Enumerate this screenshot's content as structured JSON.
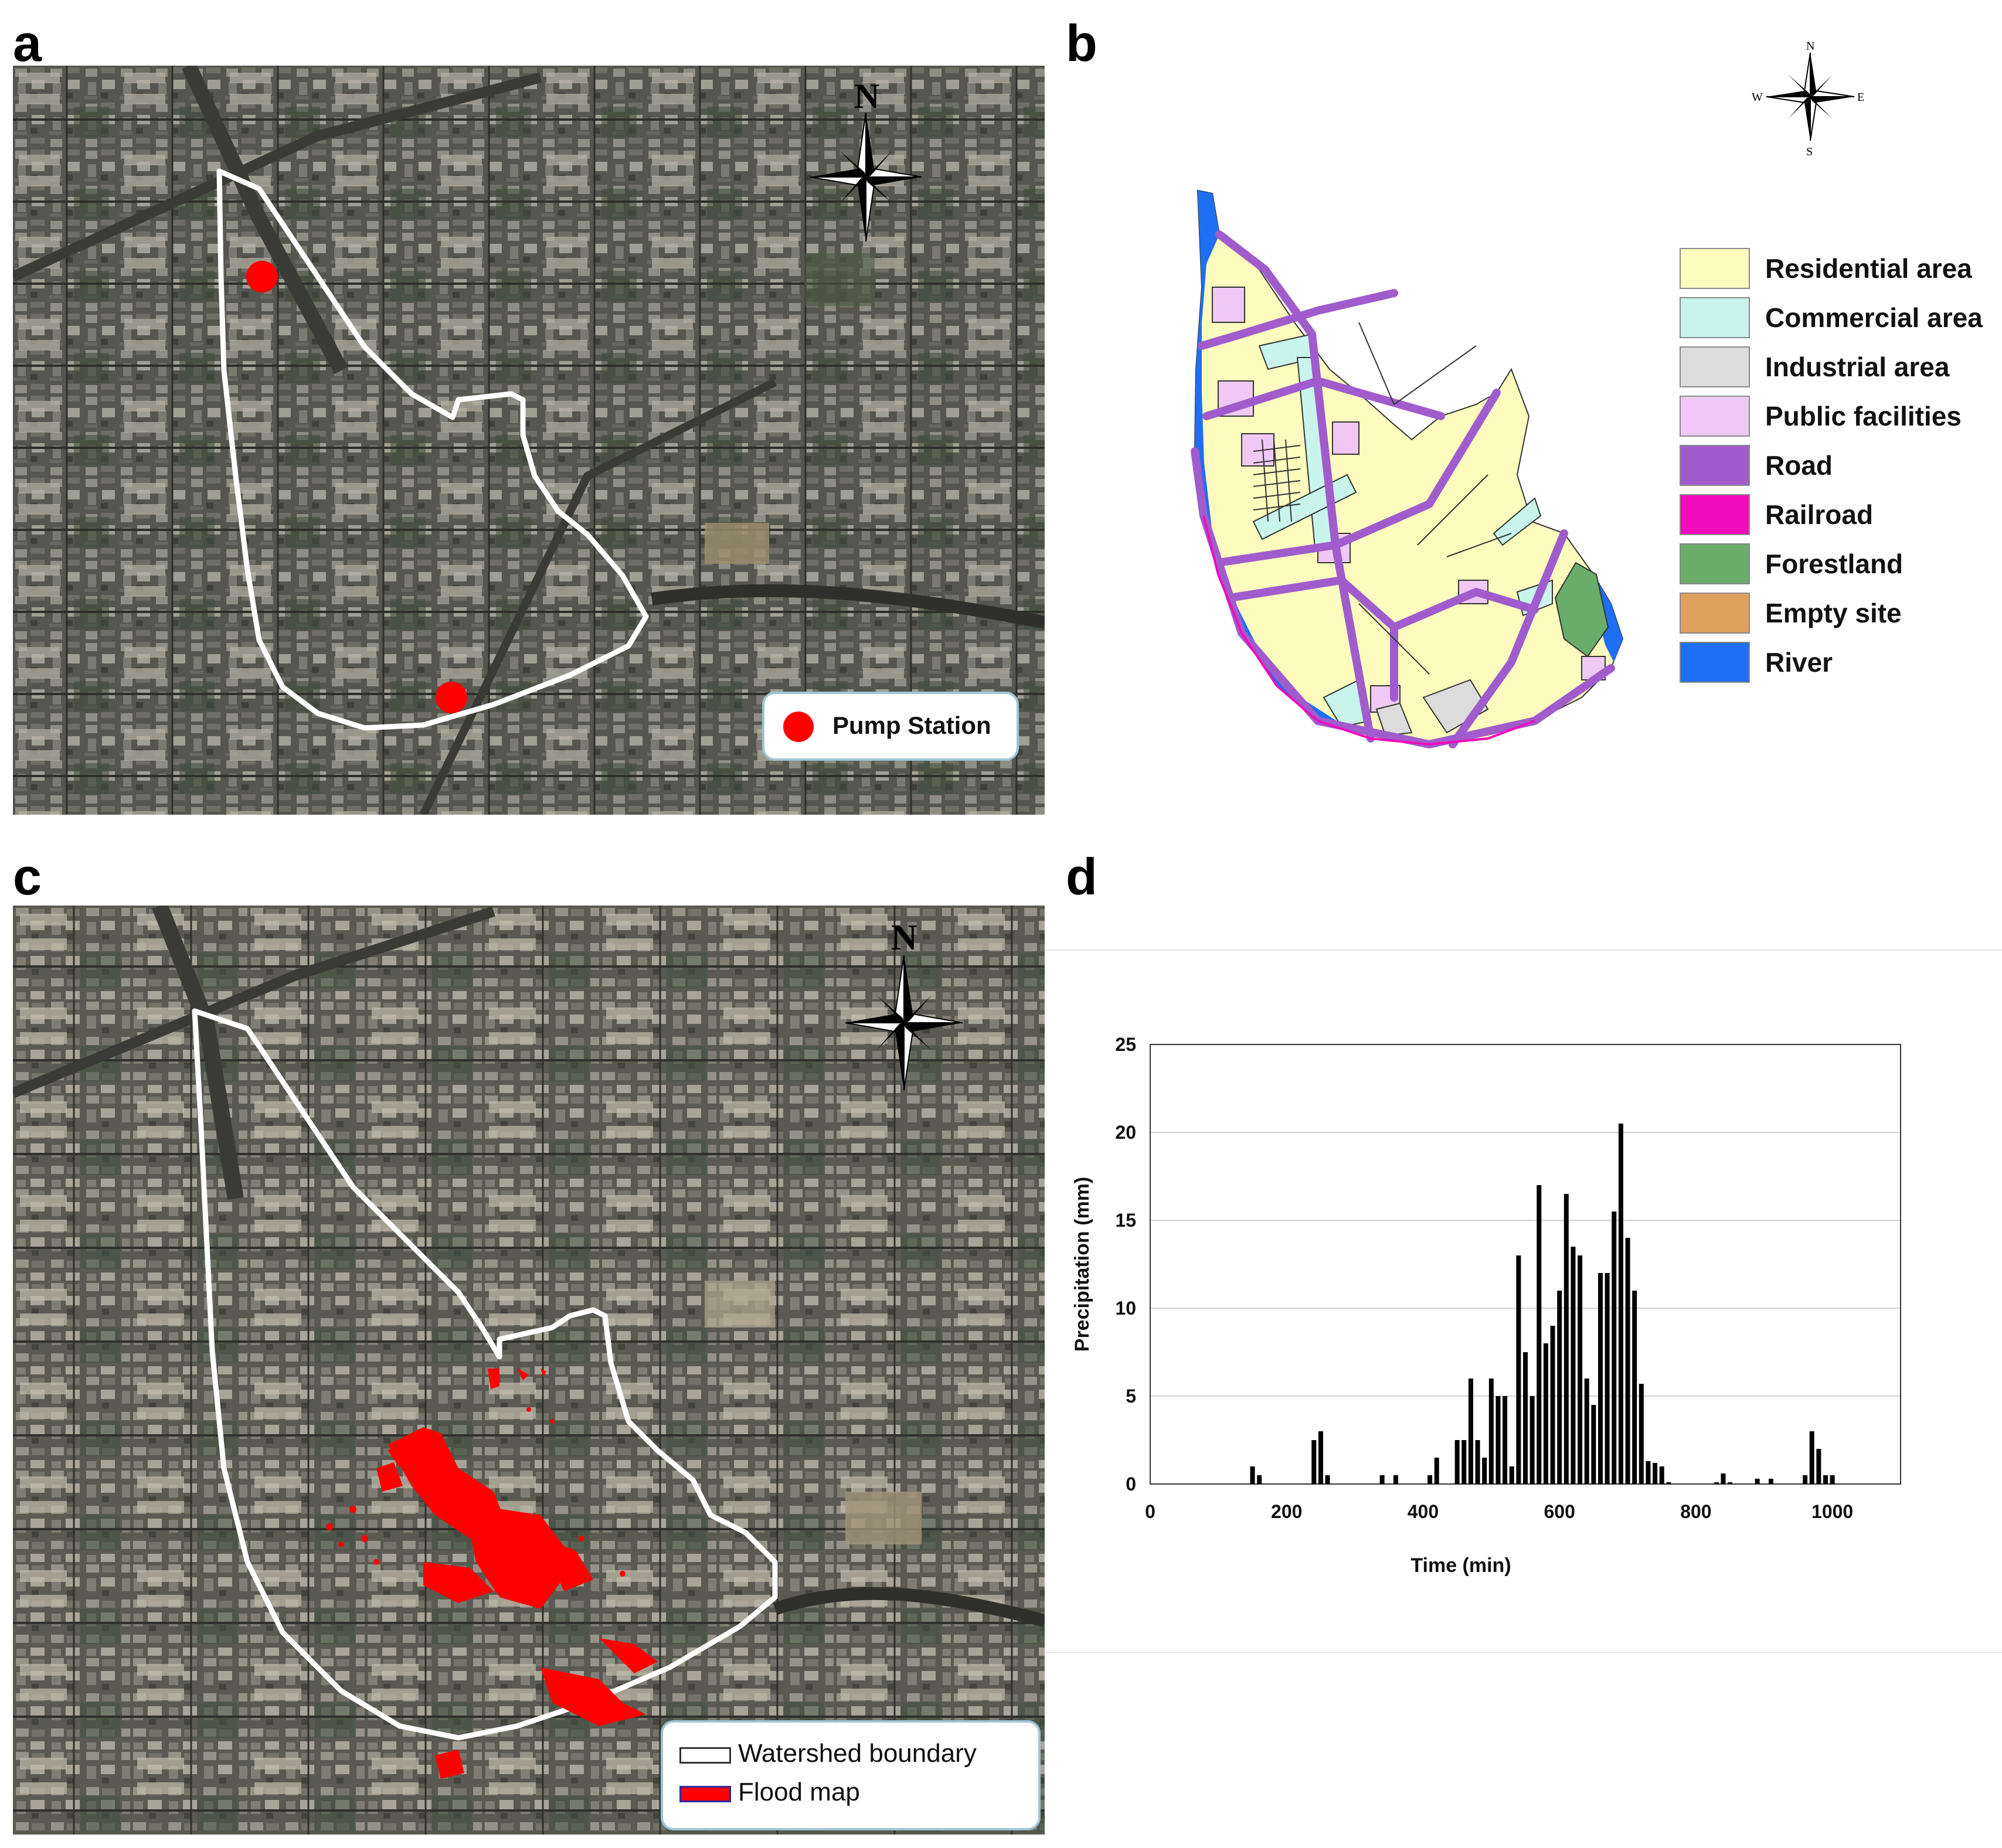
{
  "panels": {
    "a": {
      "letter": "a",
      "legend": {
        "pump_station_label": "Pump Station",
        "pump_color": "#ff0000"
      },
      "compass_label": "N"
    },
    "b": {
      "letter": "b",
      "compass": {
        "n": "N",
        "s": "S",
        "e": "E",
        "w": "W"
      },
      "legend": [
        {
          "label": "Residential area",
          "color": "#fdfbbd"
        },
        {
          "label": "Commercial area",
          "color": "#c8f4ec"
        },
        {
          "label": "Industrial area",
          "color": "#dcdcdc"
        },
        {
          "label": "Public facilities",
          "color": "#f0c8f5"
        },
        {
          "label": "Road",
          "color": "#a05ccc"
        },
        {
          "label": "Railroad",
          "color": "#f00bbd"
        },
        {
          "label": "Forestland",
          "color": "#6aad6a"
        },
        {
          "label": "Empty site",
          "color": "#e0a060"
        },
        {
          "label": "River",
          "color": "#1f6ff5"
        }
      ]
    },
    "c": {
      "letter": "c",
      "compass_label": "N",
      "legend": {
        "watershed_label": "Watershed boundary",
        "flood_label": "Flood map",
        "flood_color": "#ff0000"
      }
    },
    "d": {
      "letter": "d"
    }
  },
  "chart_data": {
    "type": "bar",
    "xlabel": "Time (min)",
    "ylabel": "Precipitation  (mm)",
    "xlim": [
      0,
      1100
    ],
    "ylim": [
      0,
      25
    ],
    "xticks": [
      0,
      200,
      400,
      600,
      800,
      1000
    ],
    "yticks": [
      0,
      5,
      10,
      15,
      20,
      25
    ],
    "grid": "horizontal",
    "bar_color": "#000000",
    "x": [
      150,
      160,
      240,
      250,
      260,
      340,
      360,
      410,
      420,
      450,
      460,
      470,
      480,
      490,
      500,
      510,
      520,
      530,
      540,
      550,
      560,
      570,
      580,
      590,
      600,
      610,
      620,
      630,
      640,
      650,
      660,
      670,
      680,
      690,
      700,
      710,
      720,
      730,
      740,
      750,
      760,
      830,
      840,
      850,
      890,
      910,
      960,
      970,
      980,
      990,
      1000
    ],
    "values": [
      1.0,
      0.5,
      2.5,
      3.0,
      0.5,
      0.5,
      0.5,
      0.5,
      1.5,
      2.5,
      2.5,
      6.0,
      2.5,
      1.5,
      6.0,
      5.0,
      5.0,
      1.0,
      13.0,
      7.5,
      5.0,
      17.0,
      8.0,
      9.0,
      11.0,
      16.5,
      13.5,
      13.0,
      6.0,
      4.5,
      12.0,
      12.0,
      15.5,
      20.5,
      14.0,
      11.0,
      5.7,
      1.3,
      1.2,
      1.0,
      0.1,
      0.1,
      0.6,
      0.1,
      0.3,
      0.3,
      0.5,
      3.0,
      2.0,
      0.5,
      0.5
    ]
  }
}
